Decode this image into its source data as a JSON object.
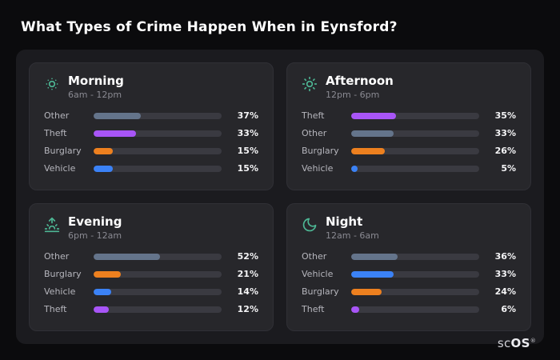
{
  "page": {
    "title": "What Types of Crime Happen When in Eynsford?"
  },
  "footer": {
    "brand_prefix": "sc",
    "brand_suffix": "OS",
    "registered": "®"
  },
  "colors": {
    "background": "#0b0b0d",
    "panel": "#1b1b1f",
    "card": "#27272b",
    "track": "#3a3a41",
    "icon_accent": "#4db694",
    "other": "#64748b",
    "theft": "#a855f7",
    "burglary": "#ed801f",
    "vehicle": "#3b82f6"
  },
  "cards": [
    {
      "icon": "sun-dim-icon",
      "title": "Morning",
      "subtitle": "6am - 12pm",
      "rows": [
        {
          "label": "Other",
          "value": 37,
          "display": "37%",
          "color": "#64748b"
        },
        {
          "label": "Theft",
          "value": 33,
          "display": "33%",
          "color": "#a855f7"
        },
        {
          "label": "Burglary",
          "value": 15,
          "display": "15%",
          "color": "#ed801f"
        },
        {
          "label": "Vehicle",
          "value": 15,
          "display": "15%",
          "color": "#3b82f6"
        }
      ]
    },
    {
      "icon": "sun-icon",
      "title": "Afternoon",
      "subtitle": "12pm - 6pm",
      "rows": [
        {
          "label": "Theft",
          "value": 35,
          "display": "35%",
          "color": "#a855f7"
        },
        {
          "label": "Other",
          "value": 33,
          "display": "33%",
          "color": "#64748b"
        },
        {
          "label": "Burglary",
          "value": 26,
          "display": "26%",
          "color": "#ed801f"
        },
        {
          "label": "Vehicle",
          "value": 5,
          "display": "5%",
          "color": "#3b82f6"
        }
      ]
    },
    {
      "icon": "sunset-icon",
      "title": "Evening",
      "subtitle": "6pm - 12am",
      "rows": [
        {
          "label": "Other",
          "value": 52,
          "display": "52%",
          "color": "#64748b"
        },
        {
          "label": "Burglary",
          "value": 21,
          "display": "21%",
          "color": "#ed801f"
        },
        {
          "label": "Vehicle",
          "value": 14,
          "display": "14%",
          "color": "#3b82f6"
        },
        {
          "label": "Theft",
          "value": 12,
          "display": "12%",
          "color": "#a855f7"
        }
      ]
    },
    {
      "icon": "moon-icon",
      "title": "Night",
      "subtitle": "12am - 6am",
      "rows": [
        {
          "label": "Other",
          "value": 36,
          "display": "36%",
          "color": "#64748b"
        },
        {
          "label": "Vehicle",
          "value": 33,
          "display": "33%",
          "color": "#3b82f6"
        },
        {
          "label": "Burglary",
          "value": 24,
          "display": "24%",
          "color": "#ed801f"
        },
        {
          "label": "Theft",
          "value": 6,
          "display": "6%",
          "color": "#a855f7"
        }
      ]
    }
  ],
  "chart_data": [
    {
      "type": "bar",
      "orientation": "horizontal",
      "title": "Morning",
      "subtitle": "6am - 12pm",
      "categories": [
        "Other",
        "Theft",
        "Burglary",
        "Vehicle"
      ],
      "values": [
        37,
        33,
        15,
        15
      ],
      "unit": "%",
      "xlim": [
        0,
        100
      ],
      "grid": false,
      "legend": "none"
    },
    {
      "type": "bar",
      "orientation": "horizontal",
      "title": "Afternoon",
      "subtitle": "12pm - 6pm",
      "categories": [
        "Theft",
        "Other",
        "Burglary",
        "Vehicle"
      ],
      "values": [
        35,
        33,
        26,
        5
      ],
      "unit": "%",
      "xlim": [
        0,
        100
      ],
      "grid": false,
      "legend": "none"
    },
    {
      "type": "bar",
      "orientation": "horizontal",
      "title": "Evening",
      "subtitle": "6pm - 12am",
      "categories": [
        "Other",
        "Burglary",
        "Vehicle",
        "Theft"
      ],
      "values": [
        52,
        21,
        14,
        12
      ],
      "unit": "%",
      "xlim": [
        0,
        100
      ],
      "grid": false,
      "legend": "none"
    },
    {
      "type": "bar",
      "orientation": "horizontal",
      "title": "Night",
      "subtitle": "12am - 6am",
      "categories": [
        "Other",
        "Vehicle",
        "Burglary",
        "Theft"
      ],
      "values": [
        36,
        33,
        24,
        6
      ],
      "unit": "%",
      "xlim": [
        0,
        100
      ],
      "grid": false,
      "legend": "none"
    }
  ]
}
